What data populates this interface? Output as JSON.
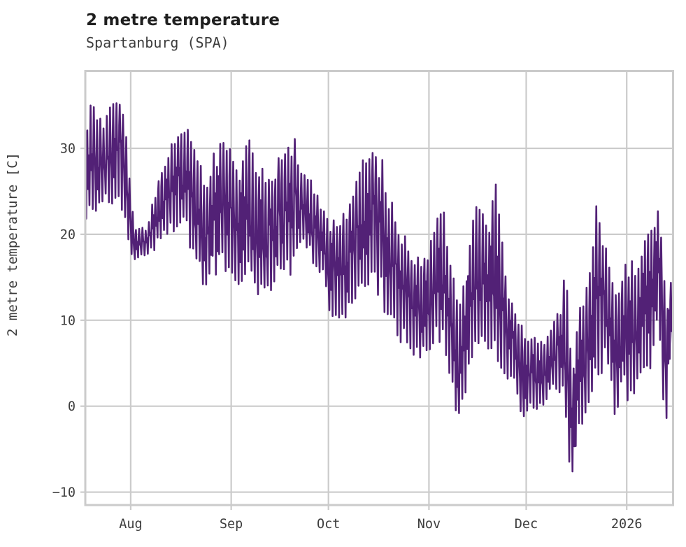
{
  "chart_data": {
    "type": "line",
    "title": "2 metre temperature",
    "subtitle": "Spartanburg (SPA)",
    "ylabel": "2 metre temperature [C]",
    "xlabel": "",
    "legend": null,
    "grid": true,
    "background_color": "#ffffff",
    "line_color": "#522176",
    "grid_color": "#cbcbcb",
    "tick_label_color": "#3d3d3d",
    "ylim": [
      -11.5,
      39.0
    ],
    "y_ticks": [
      {
        "value": 30,
        "label": "30"
      },
      {
        "value": 20,
        "label": "20"
      },
      {
        "value": 10,
        "label": "10"
      },
      {
        "value": 0,
        "label": "0"
      },
      {
        "value": -10,
        "label": "−10"
      }
    ],
    "x_total_days": 181.3,
    "x_ticks": [
      {
        "day": 14,
        "label": "Aug"
      },
      {
        "day": 45,
        "label": "Sep"
      },
      {
        "day": 75,
        "label": "Oct"
      },
      {
        "day": 106,
        "label": "Nov"
      },
      {
        "day": 136,
        "label": "Dec"
      },
      {
        "day": 167,
        "label": "2026"
      }
    ],
    "series_name": "2 metre temperature at Spartanburg (SPA)",
    "sampling": "sub-daily values with diurnal min/max cycle, mid-July through mid-January",
    "daily_envelope_anchors": [
      {
        "day": 0,
        "min": 22,
        "max": 33
      },
      {
        "day": 2,
        "min": 23,
        "max": 35
      },
      {
        "day": 5,
        "min": 24,
        "max": 33.5
      },
      {
        "day": 9,
        "min": 25,
        "max": 36.9
      },
      {
        "day": 12,
        "min": 23,
        "max": 34
      },
      {
        "day": 14,
        "min": 19,
        "max": 25
      },
      {
        "day": 15,
        "min": 17.5,
        "max": 21
      },
      {
        "day": 19,
        "min": 17.2,
        "max": 20.5
      },
      {
        "day": 21,
        "min": 18,
        "max": 24
      },
      {
        "day": 24,
        "min": 20,
        "max": 28
      },
      {
        "day": 27,
        "min": 21,
        "max": 31
      },
      {
        "day": 31,
        "min": 22,
        "max": 32.5
      },
      {
        "day": 34,
        "min": 17,
        "max": 30
      },
      {
        "day": 37,
        "min": 15,
        "max": 26
      },
      {
        "day": 40,
        "min": 16,
        "max": 29.5
      },
      {
        "day": 44,
        "min": 16.5,
        "max": 31.2
      },
      {
        "day": 47,
        "min": 14,
        "max": 26
      },
      {
        "day": 49,
        "min": 16,
        "max": 31
      },
      {
        "day": 53,
        "min": 14,
        "max": 28.5
      },
      {
        "day": 57,
        "min": 12.5,
        "max": 25
      },
      {
        "day": 60,
        "min": 15,
        "max": 28.7
      },
      {
        "day": 64,
        "min": 17,
        "max": 31
      },
      {
        "day": 67,
        "min": 20,
        "max": 27.5
      },
      {
        "day": 71,
        "min": 16,
        "max": 25
      },
      {
        "day": 74,
        "min": 15.5,
        "max": 22.5
      },
      {
        "day": 76,
        "min": 10.5,
        "max": 21
      },
      {
        "day": 78,
        "min": 11,
        "max": 23
      },
      {
        "day": 80,
        "min": 9.8,
        "max": 21
      },
      {
        "day": 83,
        "min": 13,
        "max": 26.5
      },
      {
        "day": 86,
        "min": 15,
        "max": 29.5
      },
      {
        "day": 88,
        "min": 16,
        "max": 31
      },
      {
        "day": 92,
        "min": 13,
        "max": 27
      },
      {
        "day": 95,
        "min": 10,
        "max": 22
      },
      {
        "day": 98,
        "min": 8.5,
        "max": 20
      },
      {
        "day": 101,
        "min": 7,
        "max": 18
      },
      {
        "day": 104,
        "min": 5.5,
        "max": 16
      },
      {
        "day": 107,
        "min": 8,
        "max": 21
      },
      {
        "day": 110,
        "min": 9,
        "max": 23.5
      },
      {
        "day": 113,
        "min": 4,
        "max": 16
      },
      {
        "day": 115,
        "min": -2.2,
        "max": 12
      },
      {
        "day": 117,
        "min": 1,
        "max": 14
      },
      {
        "day": 121,
        "min": 8,
        "max": 26
      },
      {
        "day": 124,
        "min": 7,
        "max": 20
      },
      {
        "day": 127,
        "min": 6,
        "max": 26
      },
      {
        "day": 130,
        "min": 4,
        "max": 14
      },
      {
        "day": 133,
        "min": 3,
        "max": 10.5
      },
      {
        "day": 134,
        "min": -1.8,
        "max": 9
      },
      {
        "day": 137,
        "min": 0.5,
        "max": 8.5
      },
      {
        "day": 140,
        "min": 0,
        "max": 8
      },
      {
        "day": 144,
        "min": 1.5,
        "max": 8.8
      },
      {
        "day": 147,
        "min": 3,
        "max": 12.8
      },
      {
        "day": 148,
        "min": 1,
        "max": 16.7
      },
      {
        "day": 150,
        "min": -8.8,
        "max": 4
      },
      {
        "day": 152,
        "min": -3,
        "max": 10
      },
      {
        "day": 155,
        "min": 0,
        "max": 16.5
      },
      {
        "day": 158,
        "min": 5,
        "max": 24
      },
      {
        "day": 161,
        "min": 6,
        "max": 17
      },
      {
        "day": 164,
        "min": -1,
        "max": 13
      },
      {
        "day": 166,
        "min": 5,
        "max": 17
      },
      {
        "day": 168,
        "min": 0.5,
        "max": 16
      },
      {
        "day": 170,
        "min": 3,
        "max": 17
      },
      {
        "day": 174,
        "min": 5,
        "max": 21.5
      },
      {
        "day": 176,
        "min": 9,
        "max": 23.8
      },
      {
        "day": 178,
        "min": 8,
        "max": 21
      },
      {
        "day": 179,
        "min": -4,
        "max": 10
      },
      {
        "day": 180,
        "min": 2,
        "max": 13
      },
      {
        "day": 181,
        "min": 7,
        "max": 15.5
      }
    ]
  }
}
